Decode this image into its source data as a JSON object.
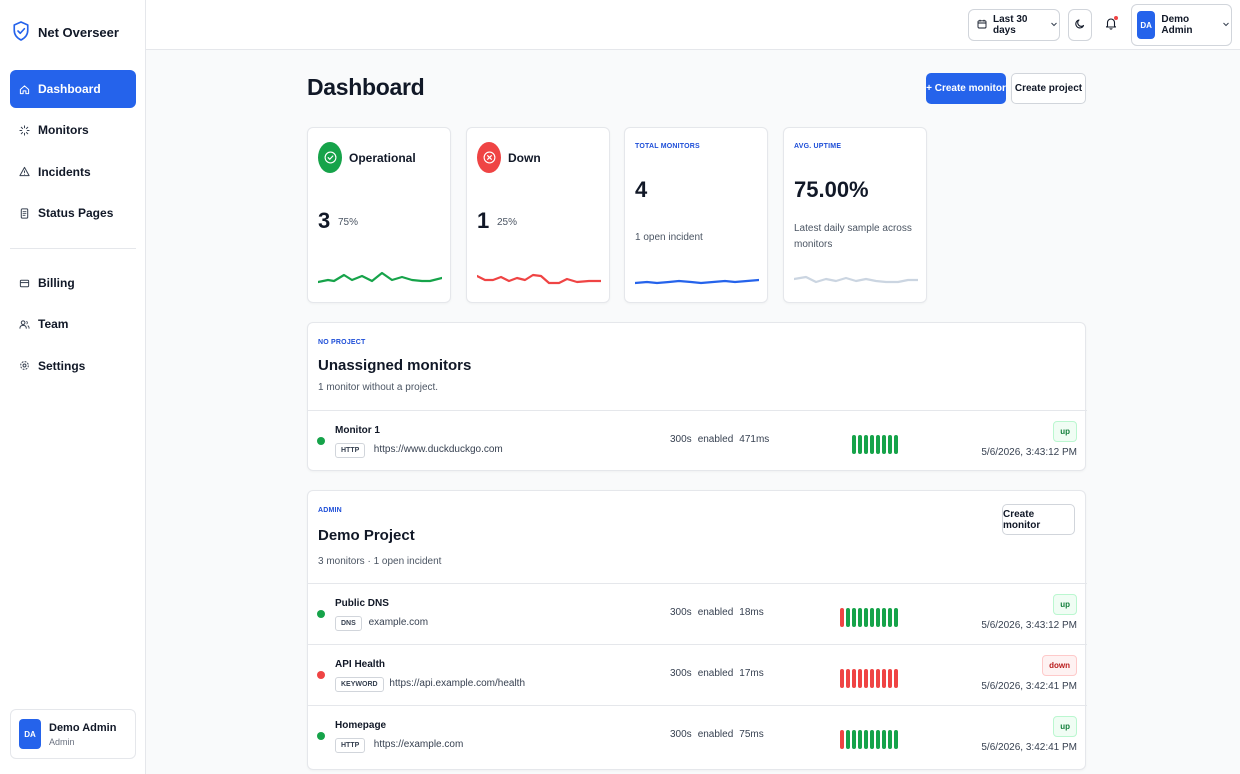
{
  "app": {
    "name": "Net Overseer"
  },
  "sidebar": {
    "items": [
      {
        "label": "Dashboard",
        "icon": "home-icon"
      },
      {
        "label": "Monitors",
        "icon": "loader-icon"
      },
      {
        "label": "Incidents",
        "icon": "warning-icon"
      },
      {
        "label": "Status Pages",
        "icon": "document-icon"
      }
    ],
    "items2": [
      {
        "label": "Billing",
        "icon": "card-icon"
      },
      {
        "label": "Team",
        "icon": "users-icon"
      },
      {
        "label": "Settings",
        "icon": "gear-icon"
      }
    ],
    "user": {
      "initials": "DA",
      "name": "Demo Admin",
      "role": "Admin"
    }
  },
  "topbar": {
    "range": "Last 30 days",
    "user": {
      "initials": "DA",
      "name": "Demo Admin"
    }
  },
  "page": {
    "title": "Dashboard",
    "create_monitor": "+ Create monitor",
    "create_project": "Create project"
  },
  "stats": {
    "operational": {
      "label": "Operational",
      "count": "3",
      "pct": "75%"
    },
    "down": {
      "label": "Down",
      "count": "1",
      "pct": "25%"
    },
    "total": {
      "label": "TOTAL MONITORS",
      "value": "4",
      "sub": "1 open incident"
    },
    "uptime": {
      "label": "AVG. UPTIME",
      "value": "75.00%",
      "sub": "Latest daily sample across monitors"
    }
  },
  "colors": {
    "up": "#16a34a",
    "down": "#ef4444",
    "accent": "#2563eb"
  },
  "unassigned": {
    "eyebrow": "NO PROJECT",
    "title": "Unassigned monitors",
    "desc": "1 monitor without a project.",
    "monitors": [
      {
        "name": "Monitor 1",
        "type": "HTTP",
        "url": "https://www.duckduckgo.com",
        "interval": "300s",
        "state": "enabled",
        "latency": "471ms",
        "status": "up",
        "timestamp": "5/6/2026, 3:43:12 PM",
        "history": [
          "up",
          "up",
          "up",
          "up",
          "up",
          "up",
          "up",
          "up"
        ]
      }
    ]
  },
  "project": {
    "eyebrow": "ADMIN",
    "title": "Demo Project",
    "desc": "3 monitors · 1 open incident",
    "create_monitor": "Create monitor",
    "monitors": [
      {
        "name": "Public DNS",
        "type": "DNS",
        "url": "example.com",
        "interval": "300s",
        "state": "enabled",
        "latency": "18ms",
        "status": "up",
        "timestamp": "5/6/2026, 3:43:12 PM",
        "history": [
          "down",
          "up",
          "up",
          "up",
          "up",
          "up",
          "up",
          "up",
          "up",
          "up"
        ]
      },
      {
        "name": "API Health",
        "type": "KEYWORD",
        "url": "https://api.example.com/health",
        "interval": "300s",
        "state": "enabled",
        "latency": "17ms",
        "status": "down",
        "timestamp": "5/6/2026, 3:42:41 PM",
        "history": [
          "down",
          "down",
          "down",
          "down",
          "down",
          "down",
          "down",
          "down",
          "down",
          "down"
        ]
      },
      {
        "name": "Homepage",
        "type": "HTTP",
        "url": "https://example.com",
        "interval": "300s",
        "state": "enabled",
        "latency": "75ms",
        "status": "up",
        "timestamp": "5/6/2026, 3:42:41 PM",
        "history": [
          "down",
          "up",
          "up",
          "up",
          "up",
          "up",
          "up",
          "up",
          "up",
          "up"
        ]
      }
    ]
  }
}
